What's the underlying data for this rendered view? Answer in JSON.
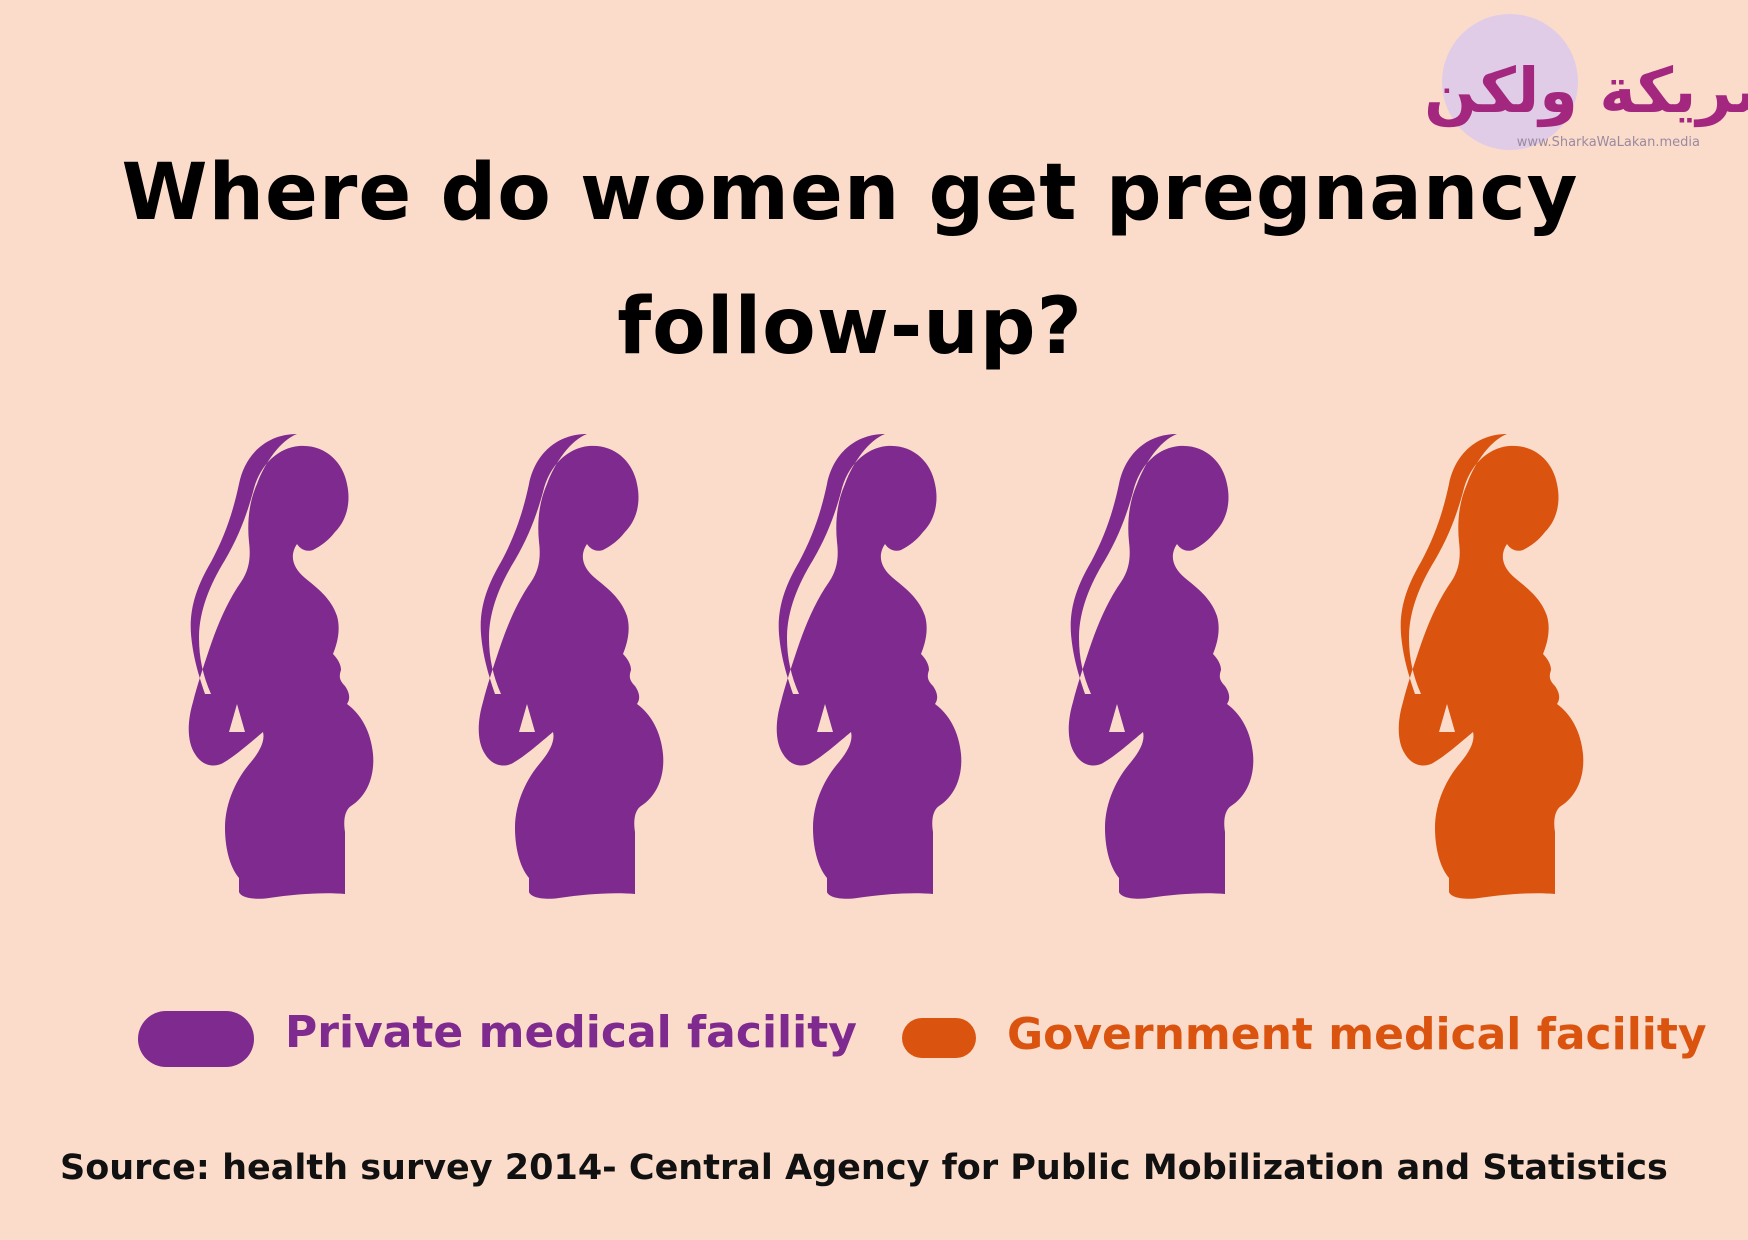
{
  "colors": {
    "background": "#FBDCCB",
    "private": "#7E2A8E",
    "government": "#DA5410",
    "text": "#000000",
    "logo_circle": "#E0CCE6",
    "logo_accent": "#A3277F"
  },
  "title_lines": [
    "Where do women get pregnancy",
    "follow-up?"
  ],
  "chart_data": {
    "type": "pictogram",
    "title": "Where do women get pregnancy follow-up?",
    "unit_icon": "pregnant-woman-silhouette-icon",
    "categories": [
      "Private medical facility",
      "Government medical facility"
    ],
    "values": [
      4,
      1
    ],
    "icons": [
      "private",
      "private",
      "private",
      "private",
      "government"
    ],
    "legend": [
      {
        "label": "Private medical facility",
        "color": "#7E2A8E"
      },
      {
        "label": "Government medical facility",
        "color": "#DA5410"
      }
    ],
    "legend_placement": "bottom"
  },
  "source": "Source: health survey 2014- Central Agency for Public Mobilization and Statistics",
  "logo": {
    "arabic_text": "شريكة ولكن",
    "url_text": "www.SharkaWaLakan.media"
  }
}
